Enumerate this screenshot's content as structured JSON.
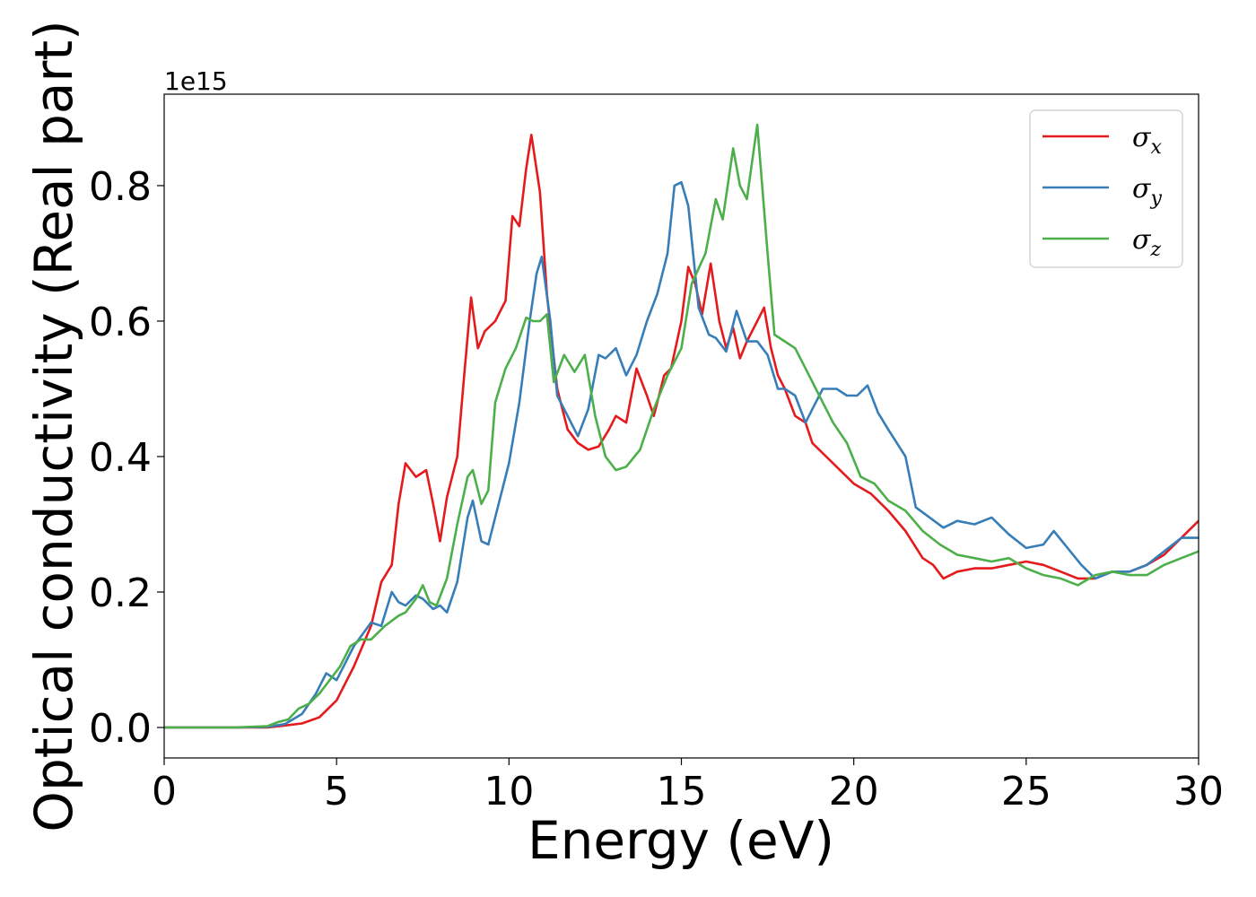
{
  "chart_data": {
    "type": "line",
    "xlabel": "Energy (eV)",
    "ylabel": "Optical conductivity (Real part)",
    "offset_text": "1e15",
    "xlim": [
      0,
      30
    ],
    "ylim": [
      -0.045,
      0.935
    ],
    "xticks": [
      "0",
      "5",
      "10",
      "15",
      "20",
      "25",
      "30"
    ],
    "yticks": [
      "0.0",
      "0.2",
      "0.4",
      "0.6",
      "0.8"
    ],
    "grid": false,
    "legend_position": "top-right",
    "series": [
      {
        "name": "σx",
        "legend_symbol": "σ",
        "legend_sub": "x",
        "color": "#e41a1c",
        "x": [
          0,
          2,
          3,
          3.5,
          4,
          4.5,
          5,
          5.5,
          6,
          6.3,
          6.6,
          6.8,
          7.0,
          7.3,
          7.6,
          7.8,
          8.0,
          8.2,
          8.5,
          8.7,
          8.9,
          9.1,
          9.3,
          9.6,
          9.9,
          10.1,
          10.3,
          10.5,
          10.65,
          10.9,
          11.1,
          11.4,
          11.7,
          12.0,
          12.3,
          12.6,
          12.9,
          13.1,
          13.4,
          13.7,
          14.0,
          14.2,
          14.5,
          14.7,
          15.0,
          15.2,
          15.4,
          15.6,
          15.85,
          16.1,
          16.3,
          16.5,
          16.7,
          16.9,
          17.2,
          17.4,
          17.6,
          17.8,
          18.0,
          18.3,
          18.6,
          18.8,
          19.2,
          19.6,
          20.0,
          20.5,
          21.0,
          21.5,
          22.0,
          22.3,
          22.6,
          23.0,
          23.5,
          24.0,
          24.5,
          25.0,
          25.5,
          26.0,
          26.5,
          27.0,
          27.5,
          28.0,
          28.5,
          29.0,
          29.5,
          30
        ],
        "values": [
          0.0,
          0.0,
          0.0,
          0.003,
          0.006,
          0.015,
          0.04,
          0.09,
          0.15,
          0.215,
          0.24,
          0.33,
          0.39,
          0.37,
          0.38,
          0.33,
          0.275,
          0.34,
          0.4,
          0.52,
          0.635,
          0.56,
          0.585,
          0.6,
          0.63,
          0.755,
          0.74,
          0.825,
          0.875,
          0.79,
          0.64,
          0.5,
          0.44,
          0.42,
          0.41,
          0.415,
          0.44,
          0.46,
          0.45,
          0.53,
          0.49,
          0.46,
          0.52,
          0.53,
          0.6,
          0.68,
          0.655,
          0.61,
          0.685,
          0.6,
          0.56,
          0.59,
          0.545,
          0.57,
          0.6,
          0.62,
          0.56,
          0.52,
          0.5,
          0.46,
          0.45,
          0.42,
          0.4,
          0.38,
          0.36,
          0.345,
          0.32,
          0.29,
          0.25,
          0.24,
          0.22,
          0.23,
          0.235,
          0.235,
          0.24,
          0.245,
          0.24,
          0.23,
          0.22,
          0.22,
          0.23,
          0.23,
          0.24,
          0.255,
          0.28,
          0.305
        ]
      },
      {
        "name": "σy",
        "legend_symbol": "σ",
        "legend_sub": "y",
        "color": "#377eb8",
        "x": [
          0,
          2,
          3,
          3.5,
          4,
          4.4,
          4.7,
          5.0,
          5.5,
          6.0,
          6.3,
          6.6,
          6.8,
          7.0,
          7.3,
          7.5,
          7.8,
          8.0,
          8.2,
          8.5,
          8.8,
          8.95,
          9.2,
          9.4,
          9.7,
          10.0,
          10.3,
          10.6,
          10.8,
          10.95,
          11.2,
          11.4,
          11.7,
          12.0,
          12.3,
          12.6,
          12.8,
          13.1,
          13.4,
          13.7,
          14.0,
          14.3,
          14.6,
          14.8,
          15.0,
          15.2,
          15.5,
          15.8,
          16.0,
          16.3,
          16.6,
          16.9,
          17.2,
          17.5,
          17.8,
          18.0,
          18.3,
          18.6,
          18.8,
          19.1,
          19.5,
          19.8,
          20.1,
          20.4,
          20.7,
          21.0,
          21.5,
          21.8,
          22.2,
          22.6,
          23.0,
          23.5,
          24.0,
          24.5,
          25.0,
          25.5,
          25.8,
          26.2,
          26.6,
          27.0,
          27.5,
          28.0,
          28.5,
          29.0,
          29.5,
          30
        ],
        "values": [
          0.0,
          0.0,
          0.001,
          0.005,
          0.02,
          0.05,
          0.08,
          0.07,
          0.12,
          0.155,
          0.15,
          0.2,
          0.185,
          0.18,
          0.195,
          0.19,
          0.175,
          0.18,
          0.17,
          0.215,
          0.31,
          0.335,
          0.275,
          0.27,
          0.33,
          0.39,
          0.48,
          0.6,
          0.67,
          0.695,
          0.6,
          0.49,
          0.46,
          0.43,
          0.47,
          0.55,
          0.545,
          0.56,
          0.52,
          0.55,
          0.6,
          0.64,
          0.7,
          0.8,
          0.805,
          0.77,
          0.62,
          0.58,
          0.575,
          0.555,
          0.615,
          0.57,
          0.57,
          0.55,
          0.5,
          0.5,
          0.49,
          0.45,
          0.47,
          0.5,
          0.5,
          0.49,
          0.49,
          0.505,
          0.465,
          0.44,
          0.4,
          0.325,
          0.31,
          0.295,
          0.305,
          0.3,
          0.31,
          0.285,
          0.265,
          0.27,
          0.29,
          0.265,
          0.24,
          0.22,
          0.23,
          0.23,
          0.24,
          0.26,
          0.28,
          0.28
        ]
      },
      {
        "name": "σz",
        "legend_symbol": "σ",
        "legend_sub": "z",
        "color": "#4daf4a",
        "x": [
          0,
          2,
          3,
          3.3,
          3.6,
          3.9,
          4.2,
          4.5,
          4.8,
          5.1,
          5.4,
          5.7,
          6.0,
          6.4,
          6.8,
          7.0,
          7.3,
          7.5,
          7.7,
          7.9,
          8.2,
          8.5,
          8.8,
          8.95,
          9.2,
          9.4,
          9.6,
          9.9,
          10.2,
          10.5,
          10.7,
          10.9,
          11.1,
          11.3,
          11.6,
          11.9,
          12.2,
          12.5,
          12.8,
          13.1,
          13.4,
          13.8,
          14.2,
          14.6,
          15.0,
          15.3,
          15.7,
          16.0,
          16.2,
          16.5,
          16.7,
          16.9,
          17.2,
          17.5,
          17.7,
          18.0,
          18.3,
          18.6,
          19.0,
          19.4,
          19.8,
          20.2,
          20.6,
          21.0,
          21.5,
          22.0,
          22.5,
          23.0,
          23.5,
          24.0,
          24.5,
          25.0,
          25.5,
          26.0,
          26.5,
          27.0,
          27.5,
          28.0,
          28.5,
          29.0,
          29.5,
          30
        ],
        "values": [
          0.0,
          0.0,
          0.002,
          0.008,
          0.012,
          0.028,
          0.035,
          0.05,
          0.07,
          0.09,
          0.12,
          0.13,
          0.13,
          0.15,
          0.165,
          0.17,
          0.19,
          0.21,
          0.185,
          0.18,
          0.22,
          0.3,
          0.37,
          0.38,
          0.33,
          0.35,
          0.48,
          0.53,
          0.56,
          0.605,
          0.6,
          0.6,
          0.61,
          0.51,
          0.55,
          0.525,
          0.55,
          0.46,
          0.4,
          0.38,
          0.385,
          0.41,
          0.47,
          0.52,
          0.56,
          0.655,
          0.7,
          0.78,
          0.75,
          0.855,
          0.8,
          0.78,
          0.89,
          0.7,
          0.58,
          0.57,
          0.56,
          0.53,
          0.49,
          0.45,
          0.42,
          0.37,
          0.36,
          0.335,
          0.32,
          0.29,
          0.27,
          0.255,
          0.25,
          0.245,
          0.25,
          0.235,
          0.225,
          0.22,
          0.21,
          0.225,
          0.23,
          0.225,
          0.225,
          0.24,
          0.25,
          0.26
        ]
      }
    ]
  }
}
